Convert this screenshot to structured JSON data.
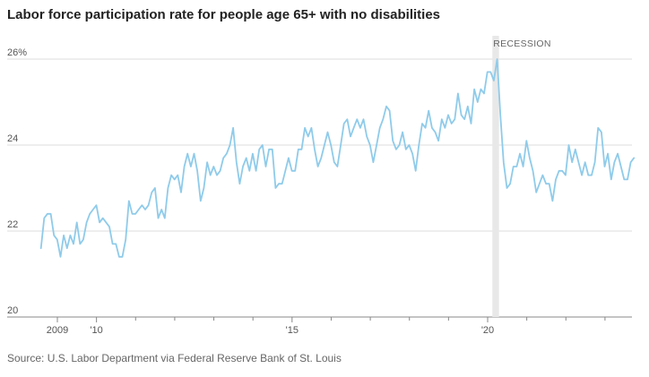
{
  "chart_data": {
    "type": "line",
    "title": "Labor force participation rate for people age 65+ with no disabilities",
    "source": "Source: U.S. Labor Department via Federal Reserve Bank of St. Louis",
    "ylim": [
      20,
      26
    ],
    "yticks": [
      {
        "value": 26,
        "label": "26%"
      },
      {
        "value": 24,
        "label": "24"
      },
      {
        "value": 22,
        "label": "22"
      },
      {
        "value": 20,
        "label": "20"
      }
    ],
    "xlim": [
      2008.5,
      2023.5
    ],
    "xticks": [
      {
        "value": 2009,
        "label": "2009"
      },
      {
        "value": 2010,
        "label": "'10"
      },
      {
        "value": 2015,
        "label": "'15"
      },
      {
        "value": 2020,
        "label": "'20"
      }
    ],
    "minor_xticks": [
      2011,
      2012,
      2013,
      2014,
      2016,
      2017,
      2018,
      2019,
      2021,
      2022,
      2023
    ],
    "recession": {
      "start": 2020.12,
      "end": 2020.29,
      "label": "RECESSION"
    },
    "line_color": "#8fcbea",
    "series": [
      {
        "name": "Participation rate",
        "x_start": 2008.58,
        "x_step": 0.0833,
        "values": [
          21.6,
          22.3,
          22.4,
          22.4,
          21.9,
          21.8,
          21.4,
          21.9,
          21.6,
          21.9,
          21.7,
          22.2,
          21.7,
          21.8,
          22.2,
          22.4,
          22.5,
          22.6,
          22.2,
          22.3,
          22.2,
          22.1,
          21.7,
          21.7,
          21.4,
          21.4,
          21.8,
          22.7,
          22.4,
          22.4,
          22.5,
          22.6,
          22.5,
          22.6,
          22.9,
          23.0,
          22.3,
          22.5,
          22.3,
          23.0,
          23.3,
          23.2,
          23.3,
          22.9,
          23.5,
          23.8,
          23.5,
          23.8,
          23.4,
          22.7,
          23.0,
          23.6,
          23.3,
          23.5,
          23.3,
          23.4,
          23.7,
          23.8,
          24.0,
          24.4,
          23.6,
          23.1,
          23.5,
          23.7,
          23.4,
          23.8,
          23.4,
          23.9,
          24.0,
          23.5,
          23.9,
          23.9,
          23.0,
          23.1,
          23.1,
          23.4,
          23.7,
          23.4,
          23.4,
          23.9,
          23.9,
          24.4,
          24.2,
          24.4,
          23.9,
          23.5,
          23.7,
          24.0,
          24.3,
          24.0,
          23.6,
          23.5,
          24.0,
          24.5,
          24.6,
          24.2,
          24.4,
          24.6,
          24.4,
          24.6,
          24.2,
          24.0,
          23.6,
          24.0,
          24.4,
          24.6,
          24.9,
          24.8,
          24.1,
          23.9,
          24.0,
          24.3,
          23.9,
          24.0,
          23.8,
          23.4,
          24.0,
          24.5,
          24.4,
          24.8,
          24.4,
          24.3,
          24.1,
          24.6,
          24.4,
          24.7,
          24.5,
          24.6,
          25.2,
          24.7,
          24.6,
          24.9,
          24.5,
          25.3,
          25.0,
          25.3,
          25.2,
          25.7,
          25.7,
          25.5,
          26.0,
          24.7,
          23.6,
          23.0,
          23.1,
          23.5,
          23.5,
          23.8,
          23.5,
          24.1,
          23.7,
          23.4,
          22.9,
          23.1,
          23.3,
          23.1,
          23.1,
          22.7,
          23.2,
          23.4,
          23.4,
          23.3,
          24.0,
          23.6,
          23.9,
          23.6,
          23.3,
          23.6,
          23.3,
          23.3,
          23.6,
          24.4,
          24.3,
          23.5,
          23.8,
          23.2,
          23.6,
          23.8,
          23.5,
          23.2,
          23.2,
          23.6,
          23.7
        ]
      }
    ]
  }
}
